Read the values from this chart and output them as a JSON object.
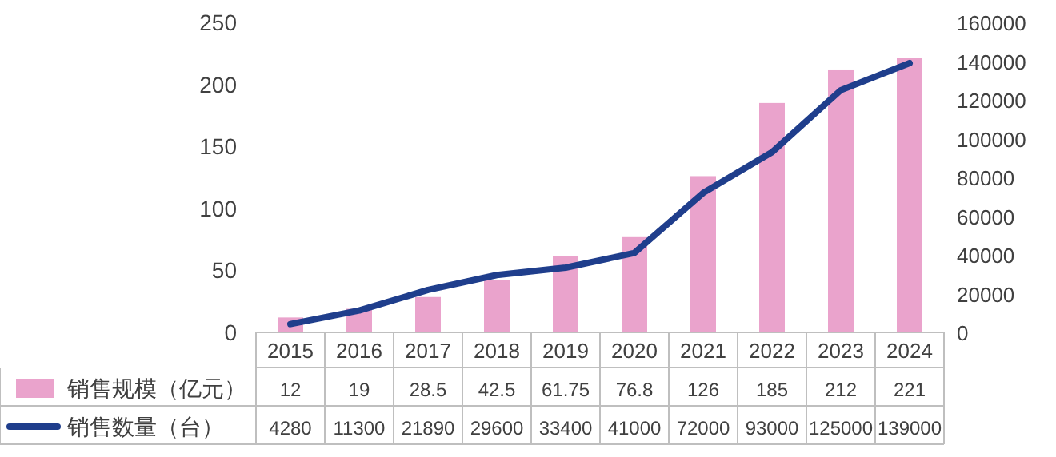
{
  "chart_data": {
    "type": "bar",
    "categories": [
      "2015",
      "2016",
      "2017",
      "2018",
      "2019",
      "2020",
      "2021",
      "2022",
      "2023",
      "2024"
    ],
    "series": [
      {
        "name": "销售规模（亿元）",
        "color": "#eaa3cc",
        "values": [
          12,
          19,
          28.5,
          42.5,
          61.75,
          76.8,
          126,
          185,
          212,
          221
        ]
      },
      {
        "name": "销售数量（台）",
        "type": "line",
        "axis": "y2",
        "color": "#1f3e8c",
        "values": [
          4280,
          11300,
          21890,
          29600,
          33400,
          41000,
          72000,
          93000,
          125000,
          139000
        ]
      }
    ],
    "ylim": [
      0,
      250
    ],
    "yticks": [
      0,
      50,
      100,
      150,
      200,
      250
    ],
    "y2lim": [
      0,
      160000
    ],
    "y2ticks": [
      0,
      20000,
      40000,
      60000,
      80000,
      100000,
      120000,
      140000,
      160000
    ],
    "data_labels": true,
    "legend": "bottom",
    "line_style": "solid"
  }
}
